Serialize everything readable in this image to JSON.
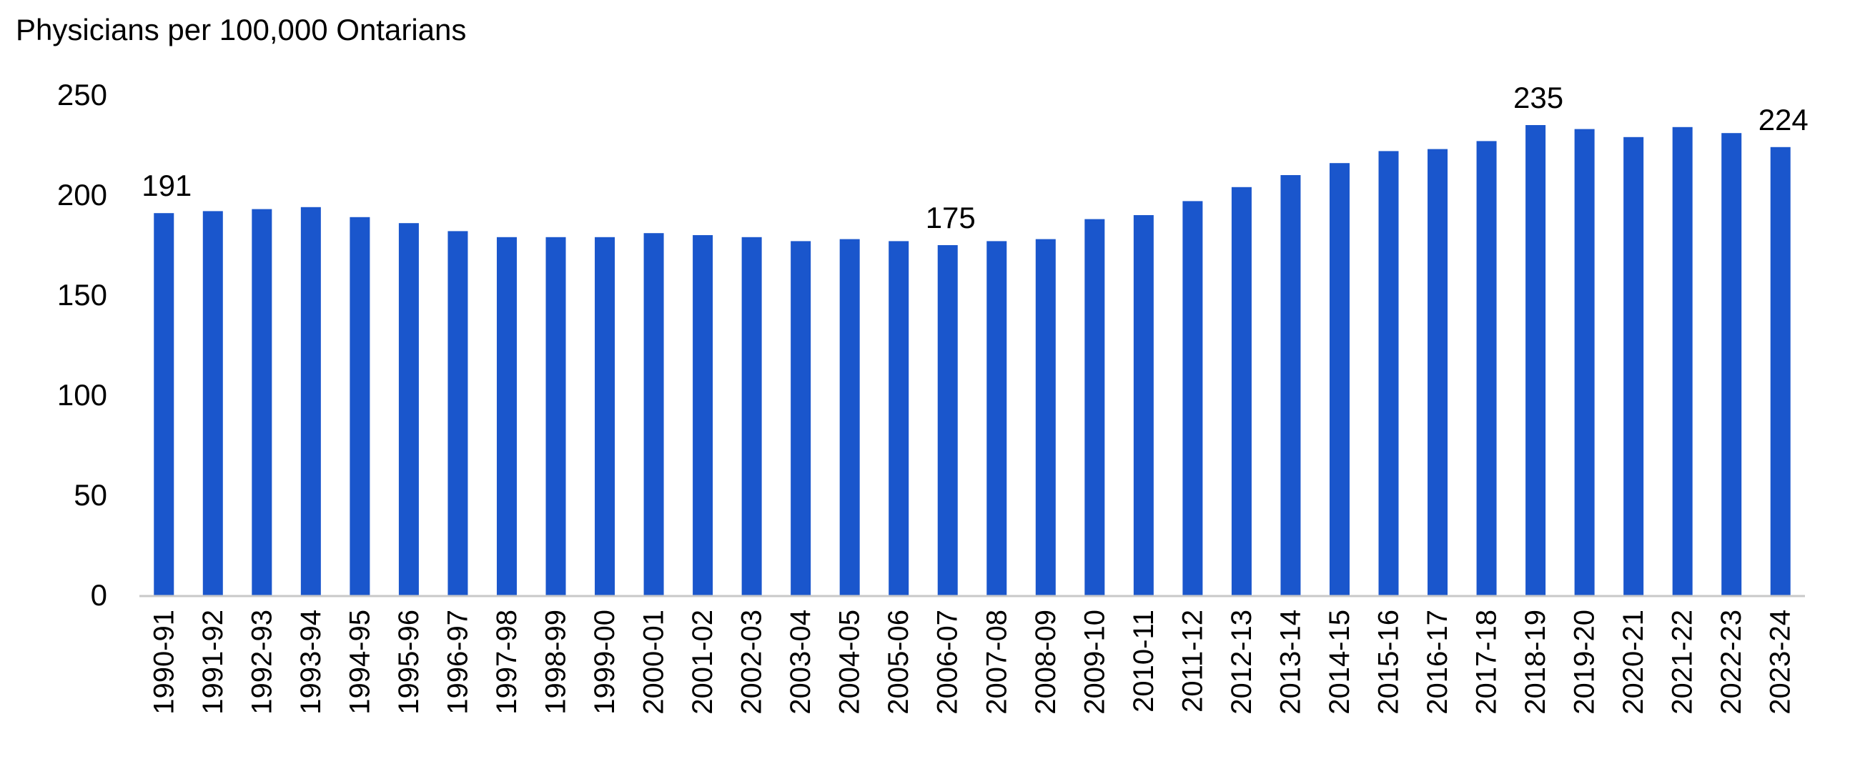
{
  "chart_data": {
    "type": "bar",
    "title": "",
    "xlabel": "",
    "ylabel": "Physicians per 100,000 Ontarians",
    "ylim": [
      0,
      250
    ],
    "yticks": [
      0,
      50,
      100,
      150,
      200,
      250
    ],
    "grid": false,
    "legend": "none",
    "bar_color": "#1a56cc",
    "axis_color": "#c8c8c8",
    "categories": [
      "1990-91",
      "1991-92",
      "1992-93",
      "1993-94",
      "1994-95",
      "1995-96",
      "1996-97",
      "1997-98",
      "1998-99",
      "1999-00",
      "2000-01",
      "2001-02",
      "2002-03",
      "2003-04",
      "2004-05",
      "2005-06",
      "2006-07",
      "2007-08",
      "2008-09",
      "2009-10",
      "2010-11",
      "2011-12",
      "2012-13",
      "2013-14",
      "2014-15",
      "2015-16",
      "2016-17",
      "2017-18",
      "2018-19",
      "2019-20",
      "2020-21",
      "2021-22",
      "2022-23",
      "2023-24"
    ],
    "values": [
      191,
      192,
      193,
      194,
      189,
      186,
      182,
      179,
      179,
      179,
      181,
      180,
      179,
      177,
      178,
      177,
      175,
      177,
      178,
      188,
      190,
      197,
      204,
      210,
      216,
      222,
      223,
      227,
      235,
      233,
      229,
      234,
      231,
      224
    ],
    "data_labels": [
      {
        "index": 0,
        "text": "191"
      },
      {
        "index": 16,
        "text": "175"
      },
      {
        "index": 28,
        "text": "235"
      },
      {
        "index": 33,
        "text": "224"
      }
    ]
  }
}
